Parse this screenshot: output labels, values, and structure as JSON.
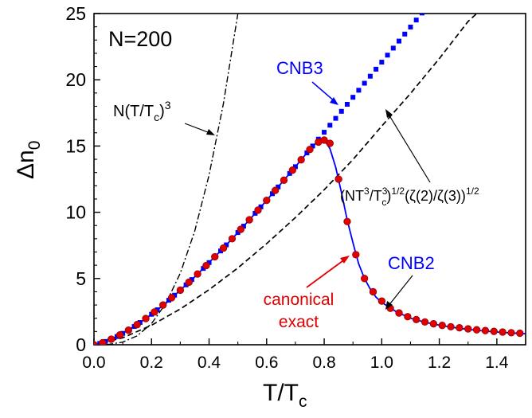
{
  "chart_data": {
    "type": "line",
    "title": "",
    "n_label": "N=200",
    "xlabel": {
      "main": "T/T",
      "sub": "c"
    },
    "ylabel": {
      "main": "Δn",
      "sub": "0"
    },
    "xlim": [
      0.0,
      1.5
    ],
    "ylim": [
      0,
      25
    ],
    "x_ticks": [
      {
        "value": 0.0,
        "label": "0.0"
      },
      {
        "value": 0.2,
        "label": "0.2"
      },
      {
        "value": 0.4,
        "label": "0.4"
      },
      {
        "value": 0.6,
        "label": "0.6"
      },
      {
        "value": 0.8,
        "label": "0.8"
      },
      {
        "value": 1.0,
        "label": "1.0"
      },
      {
        "value": 1.2,
        "label": "1.2"
      },
      {
        "value": 1.4,
        "label": "1.4"
      }
    ],
    "y_ticks": [
      {
        "value": 0,
        "label": "0"
      },
      {
        "value": 5,
        "label": "5"
      },
      {
        "value": 10,
        "label": "10"
      },
      {
        "value": 15,
        "label": "15"
      },
      {
        "value": 20,
        "label": "20"
      },
      {
        "value": 25,
        "label": "25"
      }
    ],
    "grid": false,
    "series": [
      {
        "name": "N(T/Tc)^3",
        "style": "dash-dot",
        "color": "#000000",
        "x": [
          0.0,
          0.05,
          0.1,
          0.15,
          0.2,
          0.25,
          0.3,
          0.35,
          0.4,
          0.45,
          0.5
        ],
        "y": [
          0.0,
          0.025,
          0.2,
          0.675,
          1.6,
          3.125,
          5.4,
          8.575,
          12.8,
          18.225,
          25.0
        ]
      },
      {
        "name": "(NT^3/T^3c)^1/2 (ζ(2)/ζ(3))^1/2",
        "style": "dashed",
        "color": "#000000",
        "x": [
          0.0,
          0.1,
          0.2,
          0.3,
          0.4,
          0.5,
          0.6,
          0.7,
          0.8,
          0.9,
          1.0,
          1.1,
          1.2,
          1.3,
          1.33
        ],
        "y": [
          0.0,
          0.52,
          1.47,
          2.7,
          4.15,
          5.8,
          7.63,
          9.6,
          11.7,
          13.98,
          16.5,
          18.97,
          21.6,
          24.4,
          25.0
        ]
      },
      {
        "name": "CNB3",
        "style": "markers",
        "marker": "square",
        "color": "#0000ff",
        "x": [
          0.02,
          0.04,
          0.06,
          0.08,
          0.1,
          0.12,
          0.14,
          0.16,
          0.18,
          0.2,
          0.22,
          0.24,
          0.26,
          0.28,
          0.3,
          0.32,
          0.34,
          0.36,
          0.38,
          0.4,
          0.42,
          0.44,
          0.46,
          0.48,
          0.5,
          0.52,
          0.54,
          0.56,
          0.58,
          0.6,
          0.62,
          0.64,
          0.66,
          0.68,
          0.7,
          0.72,
          0.74,
          0.76,
          0.78,
          0.8,
          0.82,
          0.84,
          0.86,
          0.88,
          0.9,
          0.92,
          0.94,
          0.96,
          0.98,
          1.0,
          1.02,
          1.04,
          1.06,
          1.08,
          1.1,
          1.12,
          1.14,
          1.16,
          1.18,
          1.2
        ],
        "y": [
          0.1,
          0.25,
          0.42,
          0.62,
          0.86,
          1.1,
          1.38,
          1.68,
          1.98,
          2.3,
          2.64,
          3.0,
          3.36,
          3.74,
          4.12,
          4.52,
          4.92,
          5.34,
          5.76,
          6.2,
          6.64,
          7.08,
          7.54,
          8.0,
          8.47,
          8.95,
          9.43,
          9.92,
          10.41,
          10.9,
          11.4,
          11.91,
          12.42,
          12.93,
          13.44,
          13.96,
          14.48,
          15.0,
          15.52,
          16.04,
          16.57,
          17.09,
          17.62,
          18.15,
          18.68,
          19.21,
          19.74,
          20.27,
          20.8,
          21.33,
          21.86,
          22.39,
          22.92,
          23.45,
          23.98,
          24.51,
          25.04,
          25.57,
          26.1,
          26.63
        ]
      },
      {
        "name": "CNB2",
        "style": "solid",
        "color": "#0000ff",
        "x": [
          0.0,
          0.05,
          0.1,
          0.15,
          0.2,
          0.25,
          0.3,
          0.35,
          0.4,
          0.45,
          0.5,
          0.55,
          0.6,
          0.65,
          0.7,
          0.75,
          0.78,
          0.8,
          0.82,
          0.84,
          0.86,
          0.88,
          0.9,
          0.92,
          0.94,
          0.96,
          0.98,
          1.0,
          1.05,
          1.1,
          1.15,
          1.2,
          1.25,
          1.3,
          1.35,
          1.4,
          1.45,
          1.5
        ],
        "y": [
          0.0,
          0.32,
          0.86,
          1.52,
          2.3,
          3.12,
          4.12,
          5.12,
          6.2,
          7.3,
          8.47,
          9.67,
          10.9,
          12.17,
          13.44,
          14.74,
          15.4,
          15.45,
          14.8,
          13.4,
          11.5,
          9.4,
          7.7,
          6.1,
          5.0,
          4.2,
          3.6,
          3.2,
          2.5,
          2.0,
          1.7,
          1.48,
          1.3,
          1.16,
          1.05,
          0.96,
          0.89,
          0.83
        ]
      },
      {
        "name": "canonical exact",
        "style": "markers",
        "marker": "circle",
        "color": "#e00000",
        "x": [
          0.0,
          0.03,
          0.06,
          0.09,
          0.12,
          0.15,
          0.18,
          0.21,
          0.24,
          0.27,
          0.3,
          0.33,
          0.36,
          0.39,
          0.42,
          0.45,
          0.48,
          0.51,
          0.54,
          0.57,
          0.6,
          0.63,
          0.66,
          0.69,
          0.72,
          0.75,
          0.78,
          0.8,
          0.82,
          0.85,
          0.88,
          0.91,
          0.94,
          0.97,
          1.0,
          1.03,
          1.06,
          1.09,
          1.12,
          1.15,
          1.18,
          1.21,
          1.24,
          1.27,
          1.3,
          1.33,
          1.36,
          1.39,
          1.42,
          1.45,
          1.48
        ],
        "y": [
          0.0,
          0.15,
          0.42,
          0.74,
          1.1,
          1.52,
          1.98,
          2.47,
          3.0,
          3.55,
          4.12,
          4.72,
          5.34,
          5.98,
          6.64,
          7.3,
          8.0,
          8.71,
          9.43,
          10.16,
          10.9,
          11.65,
          12.42,
          13.18,
          13.96,
          14.74,
          15.3,
          15.45,
          15.2,
          12.5,
          9.3,
          6.8,
          5.0,
          4.0,
          3.3,
          2.75,
          2.4,
          2.12,
          1.9,
          1.72,
          1.58,
          1.46,
          1.36,
          1.28,
          1.2,
          1.13,
          1.07,
          1.01,
          0.96,
          0.91,
          0.87
        ]
      }
    ],
    "annotations": {
      "label_ntc3": {
        "main": "N(T/T",
        "sub": "c",
        "tail": ")",
        "sup": "3"
      },
      "label_cnb3": "CNB3",
      "label_sqrt": {
        "part1": "(NT",
        "sup1": "3",
        "part2": "/T",
        "sup2": "3",
        "sub2": "c",
        "part3": ")",
        "sup3": "1/2",
        "part4": "(ζ(2)/ζ(3))",
        "sup4": "1/2"
      },
      "label_cnb2": "CNB2",
      "label_canonical_line1": "canonical",
      "label_canonical_line2": "exact"
    },
    "colors": {
      "blue": "#0000ff",
      "red": "#e00000",
      "black": "#000000"
    }
  }
}
